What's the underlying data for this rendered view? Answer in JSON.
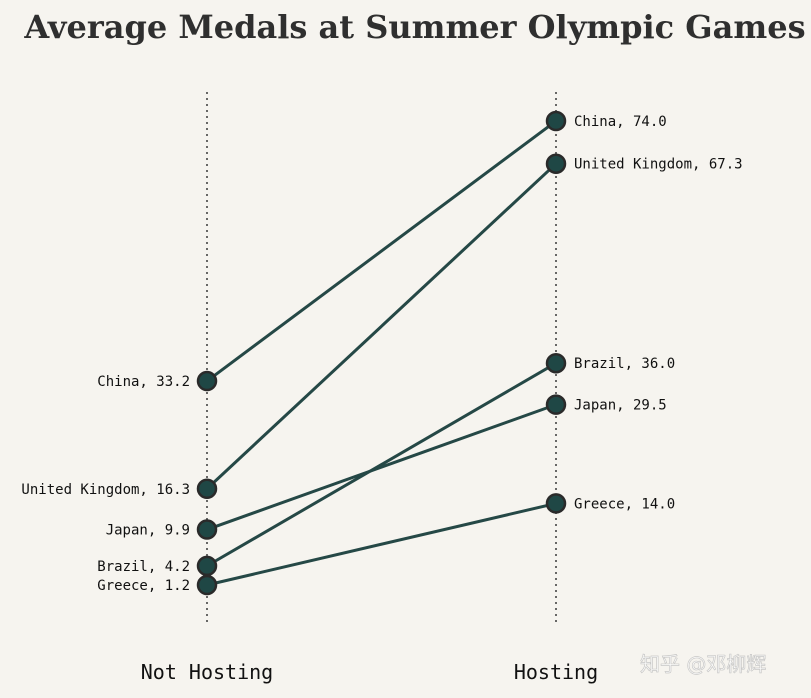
{
  "chart_data": {
    "type": "line",
    "title": "Average Medals at Summer Olympic Games",
    "categories": [
      "Not Hosting",
      "Hosting"
    ],
    "series": [
      {
        "name": "China",
        "values": [
          33.2,
          74.0
        ]
      },
      {
        "name": "United Kingdom",
        "values": [
          16.3,
          67.3
        ]
      },
      {
        "name": "Japan",
        "values": [
          9.9,
          29.5
        ]
      },
      {
        "name": "Brazil",
        "values": [
          4.2,
          36.0
        ]
      },
      {
        "name": "Greece",
        "values": [
          1.2,
          14.0
        ]
      }
    ],
    "ylim": [
      -5,
      80
    ],
    "grid": false,
    "colors": {
      "background": "#f6f4ef",
      "line": "#254846",
      "marker": "#1f4745"
    }
  },
  "watermark": {
    "text": "知乎 @邓柳辉"
  }
}
